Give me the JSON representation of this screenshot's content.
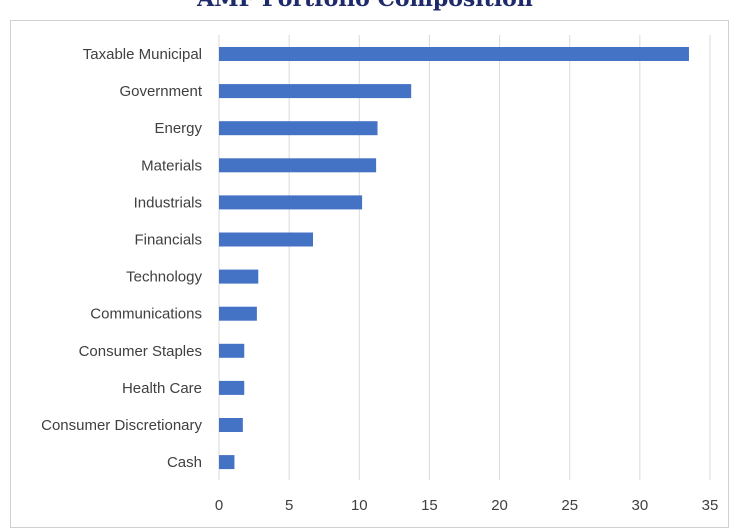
{
  "chart_data": {
    "type": "bar",
    "orientation": "horizontal",
    "title": "AMF Portfolio Composition",
    "categories": [
      "Taxable Municipal",
      "Government",
      "Energy",
      "Materials",
      "Industrials",
      "Financials",
      "Technology",
      "Communications",
      "Consumer Staples",
      "Health Care",
      "Consumer Discretionary",
      "Cash"
    ],
    "values": [
      33.5,
      13.7,
      11.3,
      11.2,
      10.2,
      6.7,
      2.8,
      2.7,
      1.8,
      1.8,
      1.7,
      1.1
    ],
    "xlim": [
      0,
      35
    ],
    "xticks": [
      "0",
      "5",
      "10",
      "15",
      "20",
      "25",
      "30",
      "35"
    ],
    "grid": "vertical",
    "bar_color": "#4472c4",
    "gridline_color": "#d9d9d9"
  }
}
